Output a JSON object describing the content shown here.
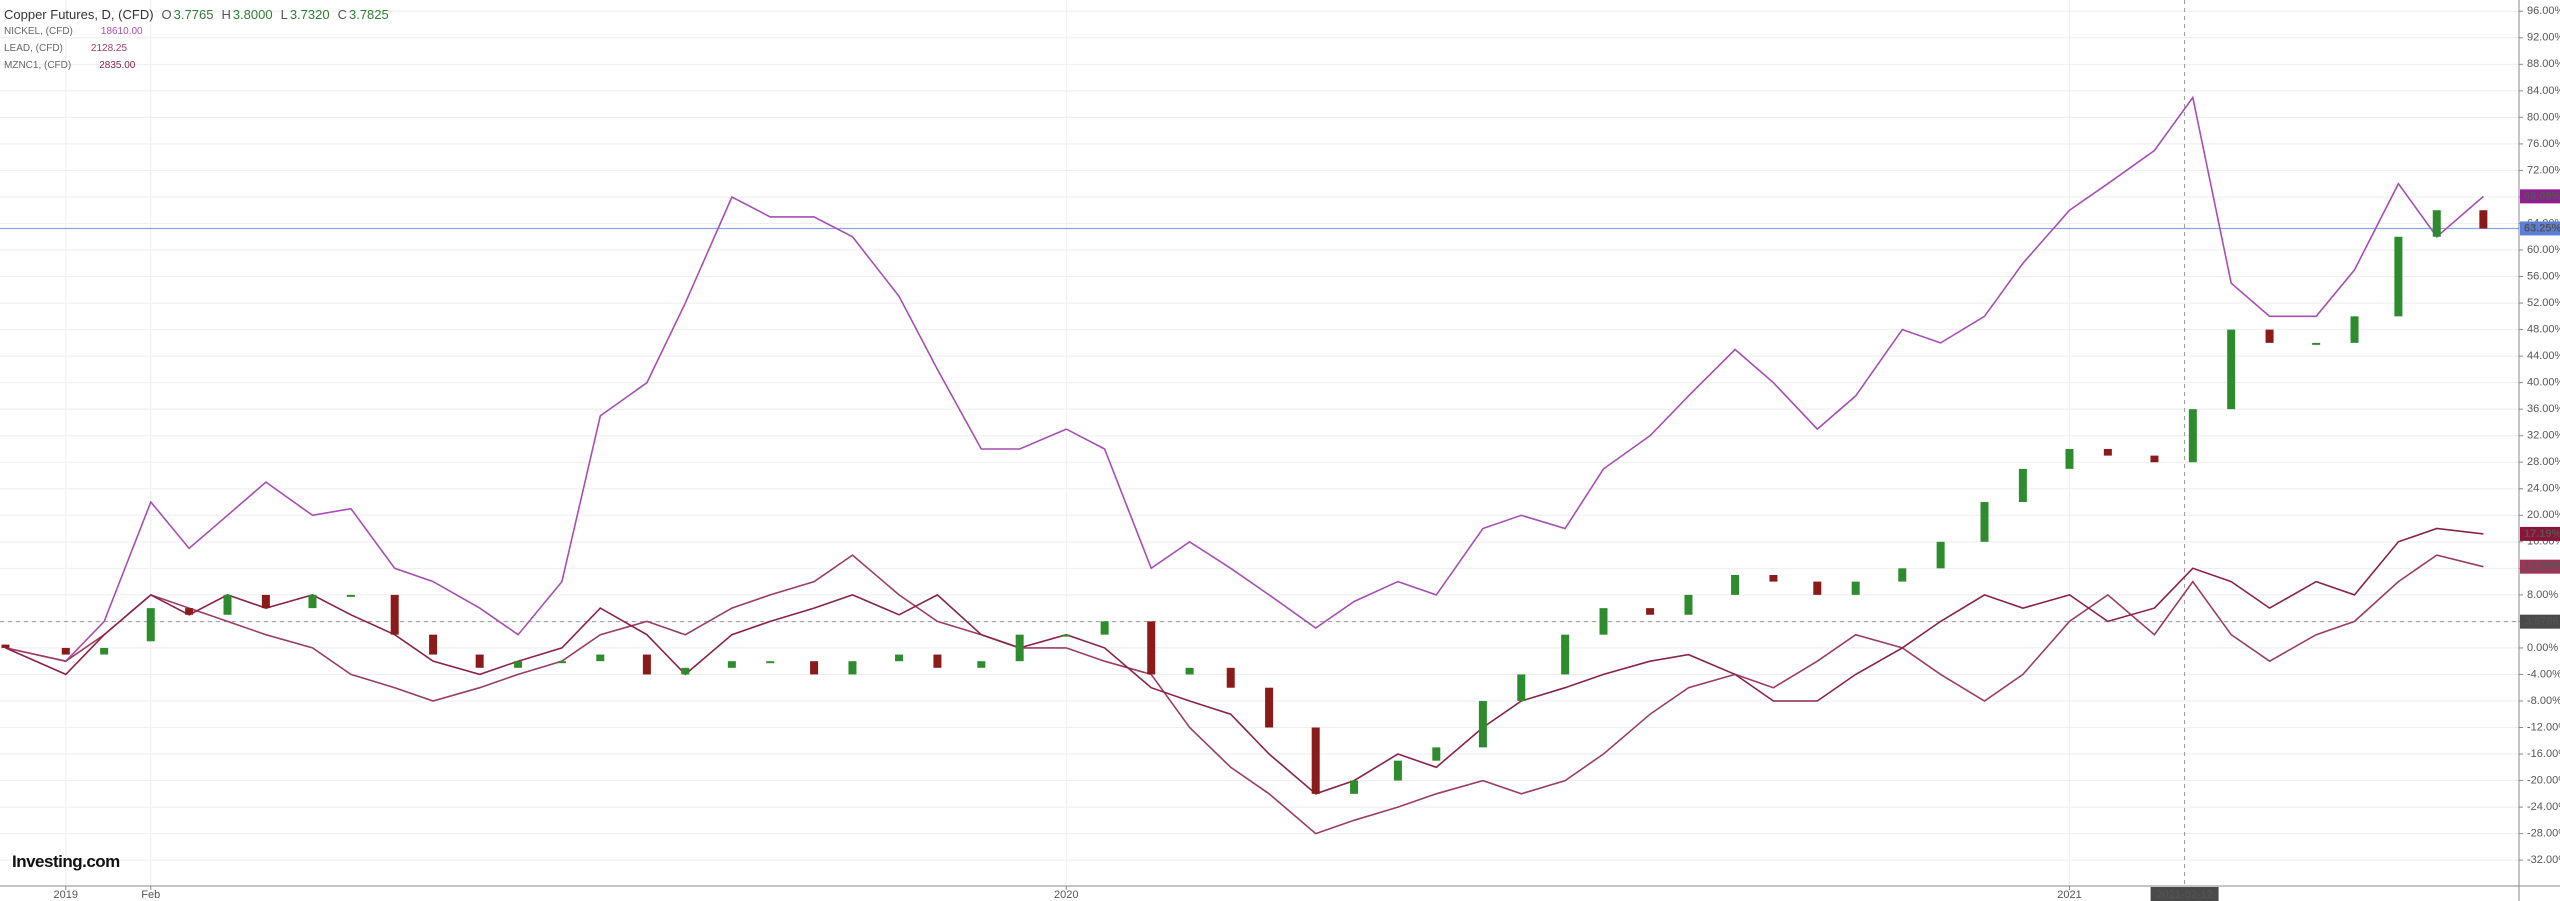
{
  "chart_data": {
    "type": "candlestick",
    "legend": {
      "title": "Copper Futures, D, (CFD)",
      "ohlc": [
        {
          "key": "O",
          "value": "3.7765"
        },
        {
          "key": "H",
          "value": "3.8000"
        },
        {
          "key": "L",
          "value": "3.7320"
        },
        {
          "key": "C",
          "value": "3.7825"
        }
      ],
      "color": "#2e7d32"
    },
    "brand": "Investing.com",
    "x": [
      "2018-12-10",
      "2019-01-01",
      "2019-01-15",
      "2019-02-01",
      "2019-02-15",
      "2019-03-01",
      "2019-03-15",
      "2019-04-01",
      "2019-04-15",
      "2019-05-01",
      "2019-05-15",
      "2019-06-01",
      "2019-06-15",
      "2019-07-01",
      "2019-07-15",
      "2019-08-01",
      "2019-08-15",
      "2019-09-01",
      "2019-09-15",
      "2019-10-01",
      "2019-10-15",
      "2019-11-01",
      "2019-11-15",
      "2019-12-01",
      "2019-12-15",
      "2020-01-01",
      "2020-01-15",
      "2020-02-01",
      "2020-02-15",
      "2020-03-01",
      "2020-03-15",
      "2020-04-01",
      "2020-04-15",
      "2020-05-01",
      "2020-05-15",
      "2020-06-01",
      "2020-06-15",
      "2020-07-01",
      "2020-07-15",
      "2020-08-01",
      "2020-08-15",
      "2020-09-01",
      "2020-09-15",
      "2020-10-01",
      "2020-10-15",
      "2020-11-01",
      "2020-11-15",
      "2020-12-01",
      "2020-12-15",
      "2021-01-01",
      "2021-01-15",
      "2021-02-01",
      "2021-02-15",
      "2021-03-01",
      "2021-03-15",
      "2021-04-01",
      "2021-04-15",
      "2021-05-01",
      "2021-05-15",
      "2021-06-01"
    ],
    "candles": {
      "open": [
        0.5,
        0,
        -1,
        1,
        6,
        5,
        8,
        6,
        8,
        8,
        2,
        -1,
        -3,
        -2,
        -2,
        -1,
        -4,
        -3,
        -2,
        -2,
        -4,
        -2,
        -1,
        -3,
        -2,
        2,
        2,
        4,
        -4,
        -3,
        -6,
        -12,
        -22,
        -20,
        -17,
        -15,
        -8,
        -4,
        2,
        6,
        5,
        8,
        11,
        10,
        8,
        10,
        12,
        16,
        22,
        27,
        30,
        29,
        28,
        36,
        48,
        46,
        46,
        50,
        62,
        66
      ],
      "close": [
        0,
        -1,
        0,
        6,
        5,
        8,
        6,
        8,
        8,
        2,
        -1,
        -3,
        -2,
        -2,
        -1,
        -4,
        -3,
        -2,
        -2,
        -4,
        -2,
        -1,
        -3,
        -2,
        2,
        2,
        4,
        -4,
        -3,
        -6,
        -12,
        -22,
        -20,
        -17,
        -15,
        -8,
        -4,
        2,
        6,
        5,
        8,
        11,
        10,
        8,
        10,
        12,
        16,
        22,
        27,
        30,
        29,
        28,
        36,
        48,
        46,
        46,
        50,
        62,
        66,
        63.25
      ],
      "up_color": "#2e8b2e",
      "down_color": "#8b1a1a"
    },
    "series": [
      {
        "name": "NICKEL, (CFD)",
        "price": "18610.00",
        "color": "#a64fb3",
        "values": [
          0,
          -2,
          4,
          22,
          15,
          20,
          25,
          20,
          21,
          12,
          10,
          6,
          2,
          10,
          35,
          40,
          52,
          68,
          65,
          65,
          62,
          53,
          42,
          30,
          30,
          33,
          30,
          12,
          16,
          12,
          8,
          3,
          7,
          10,
          8,
          18,
          20,
          18,
          27,
          32,
          38,
          45,
          40,
          33,
          38,
          48,
          46,
          50,
          58,
          66,
          70,
          75,
          83,
          55,
          50,
          50,
          57,
          70,
          62,
          68.09
        ]
      },
      {
        "name": "LEAD, (CFD)",
        "price": "2128.25",
        "color": "#9b3d62",
        "values": [
          0,
          -2,
          2,
          8,
          6,
          4,
          2,
          0,
          -4,
          -6,
          -8,
          -6,
          -4,
          -2,
          2,
          4,
          2,
          6,
          8,
          10,
          14,
          8,
          4,
          2,
          0,
          0,
          -2,
          -4,
          -12,
          -18,
          -22,
          -28,
          -26,
          -24,
          -22,
          -20,
          -22,
          -20,
          -16,
          -10,
          -6,
          -4,
          -6,
          -2,
          2,
          0,
          -4,
          -8,
          -4,
          4,
          8,
          2,
          10,
          2,
          -2,
          2,
          4,
          10,
          14,
          12.25
        ]
      },
      {
        "name": "MZNC1, (CFD)",
        "price": "2835.00",
        "color": "#8a2347",
        "values": [
          0,
          -4,
          2,
          8,
          5,
          8,
          6,
          8,
          5,
          2,
          -2,
          -4,
          -2,
          0,
          6,
          2,
          -4,
          2,
          4,
          6,
          8,
          5,
          8,
          2,
          0,
          2,
          0,
          -6,
          -8,
          -10,
          -16,
          -22,
          -20,
          -16,
          -18,
          -12,
          -8,
          -6,
          -4,
          -2,
          -1,
          -4,
          -8,
          -8,
          -4,
          0,
          4,
          8,
          6,
          8,
          4,
          6,
          12,
          10,
          6,
          10,
          8,
          16,
          18,
          17.19
        ]
      }
    ],
    "xlim": [
      "2018-12-08",
      "2021-06-14"
    ],
    "xticks": [
      {
        "value": "2019-01-01",
        "label": "2019"
      },
      {
        "value": "2019-02-01",
        "label": "Feb"
      },
      {
        "value": "2020-01-01",
        "label": "2020"
      },
      {
        "value": "2021-01-01",
        "label": "2021"
      }
    ],
    "ylim": [
      -35.9,
      97.7
    ],
    "yticks": [
      {
        "value": 96,
        "label": "96.00%"
      },
      {
        "value": 92,
        "label": "92.00%"
      },
      {
        "value": 88,
        "label": "88.00%"
      },
      {
        "value": 84,
        "label": "84.00%"
      },
      {
        "value": 80,
        "label": "80.00%"
      },
      {
        "value": 76,
        "label": "76.00%"
      },
      {
        "value": 72,
        "label": "72.00%"
      },
      {
        "value": 68,
        "label": "68.00%"
      },
      {
        "value": 64,
        "label": "64.00%"
      },
      {
        "value": 60,
        "label": "60.00%"
      },
      {
        "value": 56,
        "label": "56.00%"
      },
      {
        "value": 52,
        "label": "52.00%"
      },
      {
        "value": 48,
        "label": "48.00%"
      },
      {
        "value": 44,
        "label": "44.00%"
      },
      {
        "value": 40,
        "label": "40.00%"
      },
      {
        "value": 36,
        "label": "36.00%"
      },
      {
        "value": 32,
        "label": "32.00%"
      },
      {
        "value": 28,
        "label": "28.00%"
      },
      {
        "value": 24,
        "label": "24.00%"
      },
      {
        "value": 20,
        "label": "20.00%"
      },
      {
        "value": 16,
        "label": "16.00%"
      },
      {
        "value": 12,
        "label": "12.00%"
      },
      {
        "value": 8,
        "label": "8.00%"
      },
      {
        "value": 4,
        "label": "4.00%"
      },
      {
        "value": 0,
        "label": "0.00%"
      },
      {
        "value": -4,
        "label": "-4.00%"
      },
      {
        "value": -8,
        "label": "-8.00%"
      },
      {
        "value": -12,
        "label": "-12.00%"
      },
      {
        "value": -16,
        "label": "-16.00%"
      },
      {
        "value": -20,
        "label": "-20.00%"
      },
      {
        "value": -24,
        "label": "-24.00%"
      },
      {
        "value": -28,
        "label": "-28.00%"
      },
      {
        "value": -32,
        "label": "-32.00%"
      }
    ],
    "grid": true,
    "price_line": {
      "value": 63.25,
      "label": "63.25%",
      "color": "#5b7fd6"
    },
    "crosshair": {
      "x": "2021-02-12",
      "y": 3.96,
      "y_label": "3.6786"
    },
    "end_labels": [
      {
        "value": 68.09,
        "label": "68.09%",
        "color": "#8e1f8e"
      },
      {
        "value": 17.19,
        "label": "17.19%",
        "color": "#8a1538"
      },
      {
        "value": 12.25,
        "label": "12.25%",
        "color": "#9b3558"
      }
    ]
  }
}
